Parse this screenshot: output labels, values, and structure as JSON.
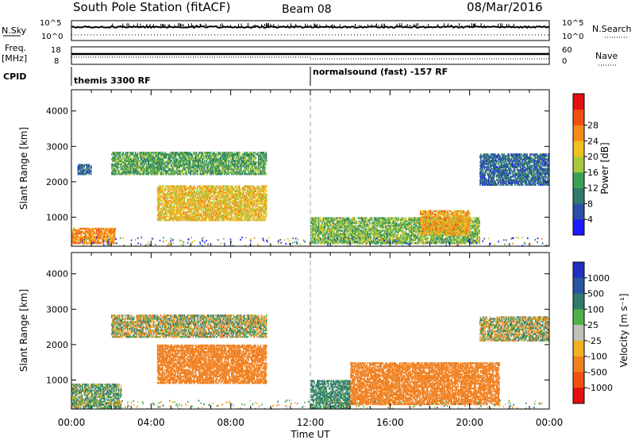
{
  "header": {
    "station": "South Pole Station (fitACF)",
    "beam": "Beam 08",
    "date": "08/Mar/2016"
  },
  "top_panels": {
    "nsky_label": "N.Sky",
    "nsky_ticks": [
      "10^5",
      "10^0"
    ],
    "nsearch_label": "N.Search",
    "nsearch_ticks": [
      "10^5",
      "10^0"
    ],
    "freq_label": "Freq.",
    "freq_unit": "[MHz]",
    "freq_ticks": [
      "18",
      "8"
    ],
    "nave_label": "Nave",
    "nave_ticks": [
      "60",
      "0"
    ],
    "cpid_label": "CPID",
    "cpid_segments": [
      {
        "start_hour": 0,
        "label": "themis 3300 RF"
      },
      {
        "start_hour": 12,
        "label": "normalsound (fast) -157 RF"
      }
    ]
  },
  "axes": {
    "ylabel": "Slant Range [km]",
    "xlabel": "Time UT",
    "y_ticks": [
      "1000",
      "2000",
      "3000",
      "4000"
    ],
    "x_ticks": [
      "00:00",
      "04:00",
      "08:00",
      "12:00",
      "16:00",
      "20:00",
      "00:00"
    ]
  },
  "colorbars": {
    "power": {
      "label": "Power [dB]",
      "ticks": [
        "4",
        "8",
        "12",
        "16",
        "20",
        "24",
        "28"
      ],
      "colors": [
        "#1a1aff",
        "#2a4fa8",
        "#2f7a6a",
        "#3aa053",
        "#a8c83a",
        "#f0c020",
        "#f58a1a",
        "#f05010",
        "#e21010"
      ]
    },
    "velocity": {
      "label": "Velocity [m s⁻¹]",
      "ticks": [
        "1000",
        "500",
        "100",
        "25",
        "-25",
        "-100",
        "-500",
        "-1000"
      ],
      "colors": [
        "#2030c0",
        "#2a55a0",
        "#2f7a6a",
        "#4fb04a",
        "#c0c0b8",
        "#f0b020",
        "#f08020",
        "#f05010",
        "#e21010"
      ]
    }
  },
  "chart_data": [
    {
      "type": "heatmap",
      "title": "Power",
      "xlabel": "Time UT",
      "ylabel": "Slant Range [km]",
      "xlim": [
        0,
        24
      ],
      "ylim": [
        180,
        4600
      ],
      "colorbar_label": "Power [dB]",
      "regions": [
        {
          "t0": 0.0,
          "t1": 2.2,
          "r0": 250,
          "r1": 700,
          "value": 26
        },
        {
          "t0": 0.3,
          "t1": 1.0,
          "r0": 2200,
          "r1": 2500,
          "value": 8
        },
        {
          "t0": 2.0,
          "t1": 9.8,
          "r0": 2200,
          "r1": 2850,
          "value": 14
        },
        {
          "t0": 4.3,
          "t1": 9.8,
          "r0": 900,
          "r1": 1900,
          "value": 22
        },
        {
          "t0": 12.0,
          "t1": 20.5,
          "r0": 250,
          "r1": 1000,
          "value": 16
        },
        {
          "t0": 17.5,
          "t1": 20.0,
          "r0": 500,
          "r1": 1200,
          "value": 24
        },
        {
          "t0": 20.5,
          "t1": 24.0,
          "r0": 1900,
          "r1": 2800,
          "value": 8
        }
      ]
    },
    {
      "type": "heatmap",
      "title": "Velocity",
      "xlabel": "Time UT",
      "ylabel": "Slant Range [km]",
      "xlim": [
        0,
        24
      ],
      "ylim": [
        180,
        4600
      ],
      "colorbar_label": "Velocity [m s⁻¹]",
      "regions": [
        {
          "t0": 0.0,
          "t1": 2.5,
          "r0": 200,
          "r1": 900,
          "value": 100
        },
        {
          "t0": 2.0,
          "t1": 9.8,
          "r0": 2200,
          "r1": 2850,
          "value": 0
        },
        {
          "t0": 4.3,
          "t1": 9.8,
          "r0": 900,
          "r1": 2000,
          "value": -300
        },
        {
          "t0": 12.0,
          "t1": 14.0,
          "r0": 200,
          "r1": 1000,
          "value": 200
        },
        {
          "t0": 14.0,
          "t1": 21.5,
          "r0": 300,
          "r1": 1500,
          "value": -300
        },
        {
          "t0": 20.5,
          "t1": 24.0,
          "r0": 2100,
          "r1": 2800,
          "value": 0
        }
      ]
    }
  ]
}
